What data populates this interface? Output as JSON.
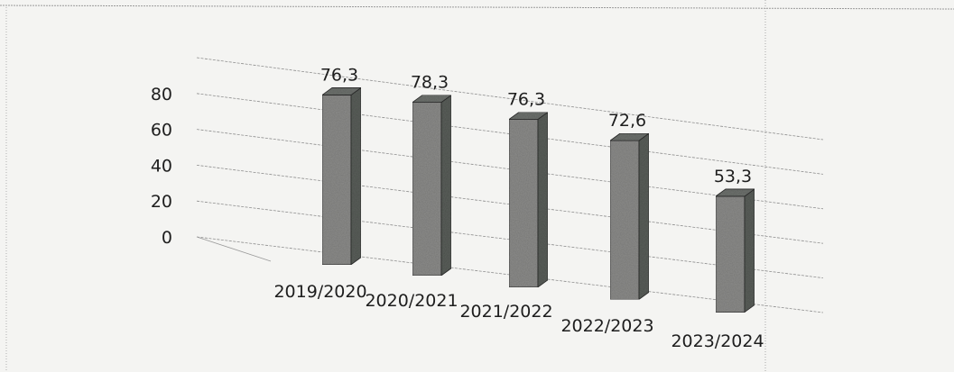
{
  "chart_data": {
    "type": "bar",
    "categories": [
      "2019/2020",
      "2020/2021",
      "2021/2022",
      "2022/2023",
      "2023/2024"
    ],
    "values": [
      76.3,
      78.3,
      76.3,
      72.6,
      53.3
    ],
    "value_labels": [
      "76,3",
      "78,3",
      "76,3",
      "72,6",
      "53,3"
    ],
    "yticks": [
      0,
      20,
      40,
      60,
      80
    ],
    "ytick_labels": [
      "0",
      "20",
      "40",
      "60",
      "80"
    ],
    "ylim": [
      0,
      100
    ],
    "grid": true,
    "style": "3d-perspective",
    "bar_color": "#8e8e8c",
    "title": "",
    "xlabel": "",
    "ylabel": ""
  }
}
